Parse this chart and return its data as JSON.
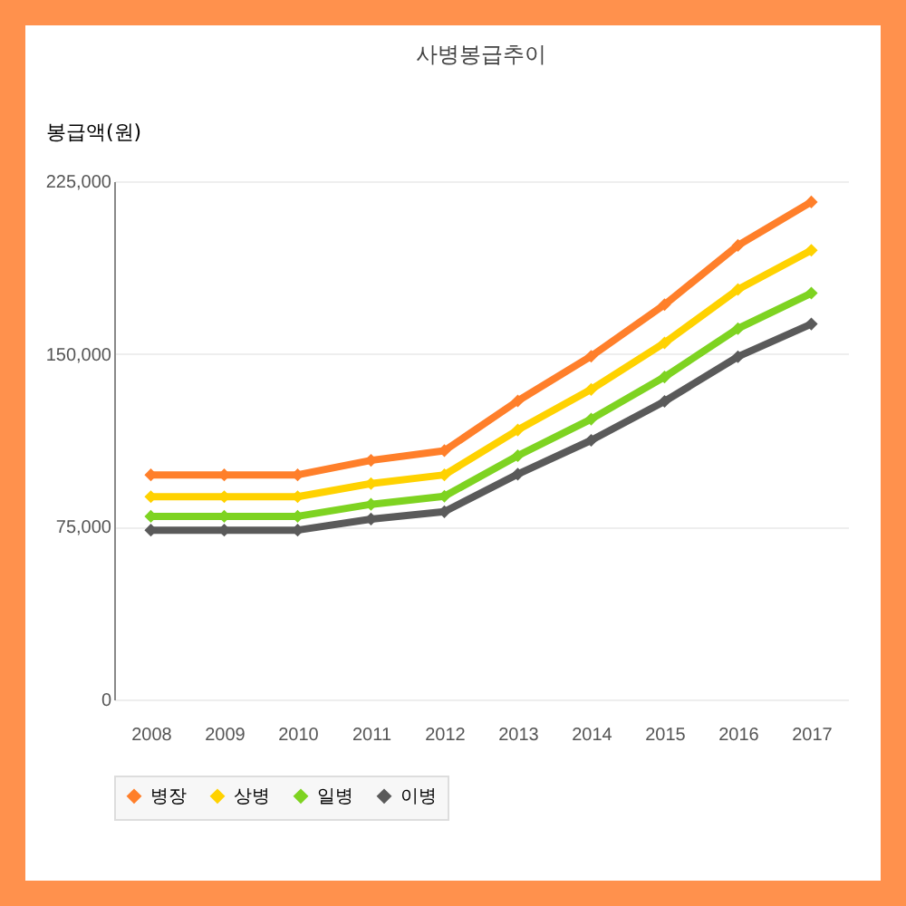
{
  "chart_data": {
    "type": "line",
    "title": "사병봉급추이",
    "ylabel": "봉급액(원)",
    "categories": [
      "2008",
      "2009",
      "2010",
      "2011",
      "2012",
      "2013",
      "2014",
      "2015",
      "2016",
      "2017"
    ],
    "series": [
      {
        "name": "병장",
        "color": "#ff7f2a",
        "values": [
          97500,
          97500,
          97500,
          103800,
          108000,
          129600,
          149000,
          171400,
          197100,
          216000
        ]
      },
      {
        "name": "상병",
        "color": "#ffd200",
        "values": [
          88000,
          88000,
          88000,
          93700,
          97500,
          117000,
          134600,
          154800,
          178000,
          195000
        ]
      },
      {
        "name": "일병",
        "color": "#7ed321",
        "values": [
          79500,
          79500,
          79500,
          84700,
          88200,
          105800,
          121700,
          140000,
          161000,
          176400
        ]
      },
      {
        "name": "이병",
        "color": "#5a5a5a",
        "values": [
          73500,
          73500,
          73500,
          78300,
          81500,
          97800,
          112500,
          129400,
          148800,
          163000
        ]
      }
    ],
    "ylim": [
      0,
      225000
    ],
    "yticks": [
      0,
      {
        "value": 75000,
        "label": "75,000"
      },
      {
        "value": 150000,
        "label": "150,000"
      },
      {
        "value": 225000,
        "label": "225,000"
      }
    ],
    "grid": "y",
    "legend": "bottom",
    "marker": "diamond",
    "line_style": "solid"
  }
}
